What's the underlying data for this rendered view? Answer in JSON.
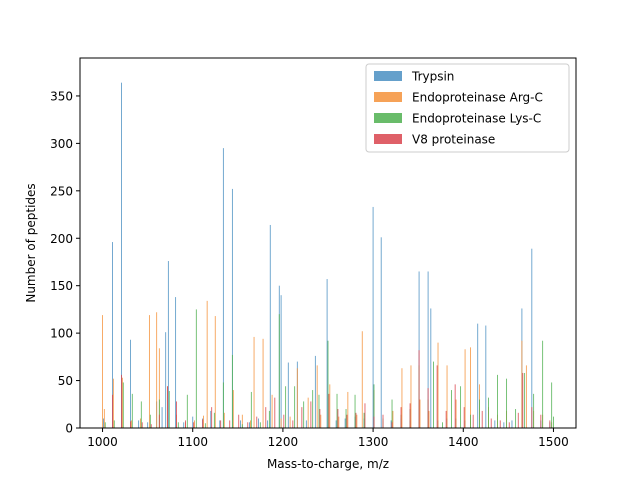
{
  "chart_data": {
    "type": "bar",
    "xlabel": "Mass-to-charge, m/z",
    "ylabel": "Number of peptides",
    "xlim": [
      975,
      1525
    ],
    "ylim": [
      0,
      390
    ],
    "xticks": [
      1000,
      1100,
      1200,
      1300,
      1400,
      1500
    ],
    "yticks": [
      0,
      50,
      100,
      150,
      200,
      250,
      300,
      350
    ],
    "legend_position": "top-right",
    "grid": false,
    "series": [
      {
        "name": "Trypsin",
        "color": "#4a8fc2",
        "points": [
          [
            1001,
            10
          ],
          [
            1011,
            196
          ],
          [
            1021,
            364
          ],
          [
            1031,
            93
          ],
          [
            1040,
            8
          ],
          [
            1050,
            6
          ],
          [
            1060,
            28
          ],
          [
            1066,
            22
          ],
          [
            1070,
            101
          ],
          [
            1073,
            176
          ],
          [
            1081,
            138
          ],
          [
            1090,
            6
          ],
          [
            1100,
            12
          ],
          [
            1111,
            10
          ],
          [
            1120,
            18
          ],
          [
            1130,
            8
          ],
          [
            1134,
            295
          ],
          [
            1144,
            252
          ],
          [
            1153,
            8
          ],
          [
            1163,
            6
          ],
          [
            1173,
            10
          ],
          [
            1183,
            8
          ],
          [
            1186,
            214
          ],
          [
            1196,
            150
          ],
          [
            1198,
            140
          ],
          [
            1206,
            69
          ],
          [
            1216,
            70
          ],
          [
            1226,
            8
          ],
          [
            1236,
            76
          ],
          [
            1249,
            157
          ],
          [
            1259,
            8
          ],
          [
            1269,
            10
          ],
          [
            1280,
            12
          ],
          [
            1290,
            10
          ],
          [
            1300,
            233
          ],
          [
            1309,
            201
          ],
          [
            1320,
            8
          ],
          [
            1331,
            10
          ],
          [
            1341,
            8
          ],
          [
            1351,
            165
          ],
          [
            1361,
            165
          ],
          [
            1364,
            126
          ],
          [
            1372,
            8
          ],
          [
            1382,
            10
          ],
          [
            1392,
            10
          ],
          [
            1402,
            8
          ],
          [
            1416,
            110
          ],
          [
            1425,
            108
          ],
          [
            1435,
            8
          ],
          [
            1445,
            6
          ],
          [
            1454,
            8
          ],
          [
            1465,
            126
          ],
          [
            1476,
            189
          ],
          [
            1486,
            8
          ],
          [
            1496,
            6
          ]
        ]
      },
      {
        "name": "Endoproteinase Arg-C",
        "color": "#f5923a",
        "points": [
          [
            1000,
            119
          ],
          [
            1002,
            20
          ],
          [
            1012,
            52
          ],
          [
            1022,
            53
          ],
          [
            1032,
            8
          ],
          [
            1042,
            10
          ],
          [
            1052,
            119
          ],
          [
            1060,
            122
          ],
          [
            1063,
            84
          ],
          [
            1072,
            44
          ],
          [
            1082,
            14
          ],
          [
            1092,
            6
          ],
          [
            1102,
            8
          ],
          [
            1112,
            13
          ],
          [
            1116,
            134
          ],
          [
            1125,
            118
          ],
          [
            1135,
            16
          ],
          [
            1145,
            40
          ],
          [
            1155,
            14
          ],
          [
            1164,
            8
          ],
          [
            1168,
            96
          ],
          [
            1178,
            94
          ],
          [
            1188,
            35
          ],
          [
            1198,
            10
          ],
          [
            1208,
            12
          ],
          [
            1216,
            63
          ],
          [
            1228,
            32
          ],
          [
            1238,
            66
          ],
          [
            1242,
            14
          ],
          [
            1252,
            46
          ],
          [
            1262,
            12
          ],
          [
            1272,
            38
          ],
          [
            1282,
            14
          ],
          [
            1288,
            102
          ],
          [
            1301,
            40
          ],
          [
            1311,
            8
          ],
          [
            1322,
            18
          ],
          [
            1332,
            63
          ],
          [
            1342,
            66
          ],
          [
            1352,
            30
          ],
          [
            1362,
            18
          ],
          [
            1372,
            90
          ],
          [
            1382,
            66
          ],
          [
            1392,
            30
          ],
          [
            1402,
            83
          ],
          [
            1408,
            85
          ],
          [
            1418,
            46
          ],
          [
            1428,
            22
          ],
          [
            1438,
            14
          ],
          [
            1448,
            18
          ],
          [
            1465,
            92
          ],
          [
            1470,
            66
          ],
          [
            1478,
            18
          ],
          [
            1488,
            14
          ],
          [
            1498,
            6
          ]
        ]
      },
      {
        "name": "Endoproteinase Lys-C",
        "color": "#4fb050",
        "points": [
          [
            1003,
            6
          ],
          [
            1013,
            8
          ],
          [
            1023,
            48
          ],
          [
            1033,
            36
          ],
          [
            1043,
            28
          ],
          [
            1053,
            14
          ],
          [
            1063,
            30
          ],
          [
            1074,
            39
          ],
          [
            1084,
            6
          ],
          [
            1094,
            35
          ],
          [
            1104,
            125
          ],
          [
            1114,
            5
          ],
          [
            1124,
            16
          ],
          [
            1134,
            48
          ],
          [
            1144,
            77
          ],
          [
            1155,
            4
          ],
          [
            1165,
            38
          ],
          [
            1175,
            6
          ],
          [
            1185,
            18
          ],
          [
            1196,
            120
          ],
          [
            1203,
            44
          ],
          [
            1213,
            44
          ],
          [
            1223,
            28
          ],
          [
            1233,
            40
          ],
          [
            1240,
            35
          ],
          [
            1250,
            92
          ],
          [
            1260,
            36
          ],
          [
            1270,
            20
          ],
          [
            1280,
            35
          ],
          [
            1290,
            16
          ],
          [
            1301,
            46
          ],
          [
            1311,
            10
          ],
          [
            1321,
            30
          ],
          [
            1331,
            14
          ],
          [
            1341,
            20
          ],
          [
            1351,
            66
          ],
          [
            1361,
            30
          ],
          [
            1367,
            70
          ],
          [
            1377,
            6
          ],
          [
            1387,
            40
          ],
          [
            1397,
            44
          ],
          [
            1408,
            14
          ],
          [
            1418,
            30
          ],
          [
            1428,
            32
          ],
          [
            1438,
            56
          ],
          [
            1448,
            52
          ],
          [
            1458,
            20
          ],
          [
            1468,
            58
          ],
          [
            1478,
            36
          ],
          [
            1488,
            92
          ],
          [
            1498,
            48
          ],
          [
            1500,
            12
          ]
        ]
      },
      {
        "name": "V8 proteinase",
        "color": "#d9444d",
        "points": [
          [
            1011,
            35
          ],
          [
            1021,
            56
          ],
          [
            1031,
            7
          ],
          [
            1044,
            6
          ],
          [
            1054,
            4
          ],
          [
            1063,
            14
          ],
          [
            1072,
            44
          ],
          [
            1082,
            28
          ],
          [
            1092,
            8
          ],
          [
            1101,
            6
          ],
          [
            1111,
            9
          ],
          [
            1121,
            22
          ],
          [
            1131,
            8
          ],
          [
            1141,
            8
          ],
          [
            1151,
            14
          ],
          [
            1161,
            6
          ],
          [
            1171,
            12
          ],
          [
            1181,
            22
          ],
          [
            1191,
            32
          ],
          [
            1201,
            14
          ],
          [
            1211,
            8
          ],
          [
            1221,
            22
          ],
          [
            1231,
            28
          ],
          [
            1241,
            20
          ],
          [
            1251,
            36
          ],
          [
            1261,
            20
          ],
          [
            1271,
            14
          ],
          [
            1281,
            16
          ],
          [
            1291,
            26
          ],
          [
            1301,
            12
          ],
          [
            1311,
            14
          ],
          [
            1321,
            6
          ],
          [
            1331,
            22
          ],
          [
            1341,
            26
          ],
          [
            1351,
            82
          ],
          [
            1361,
            42
          ],
          [
            1371,
            66
          ],
          [
            1381,
            18
          ],
          [
            1391,
            46
          ],
          [
            1401,
            22
          ],
          [
            1411,
            14
          ],
          [
            1421,
            18
          ],
          [
            1431,
            10
          ],
          [
            1441,
            8
          ],
          [
            1451,
            6
          ],
          [
            1461,
            16
          ],
          [
            1466,
            58
          ],
          [
            1476,
            22
          ],
          [
            1486,
            14
          ],
          [
            1496,
            8
          ]
        ]
      }
    ]
  }
}
